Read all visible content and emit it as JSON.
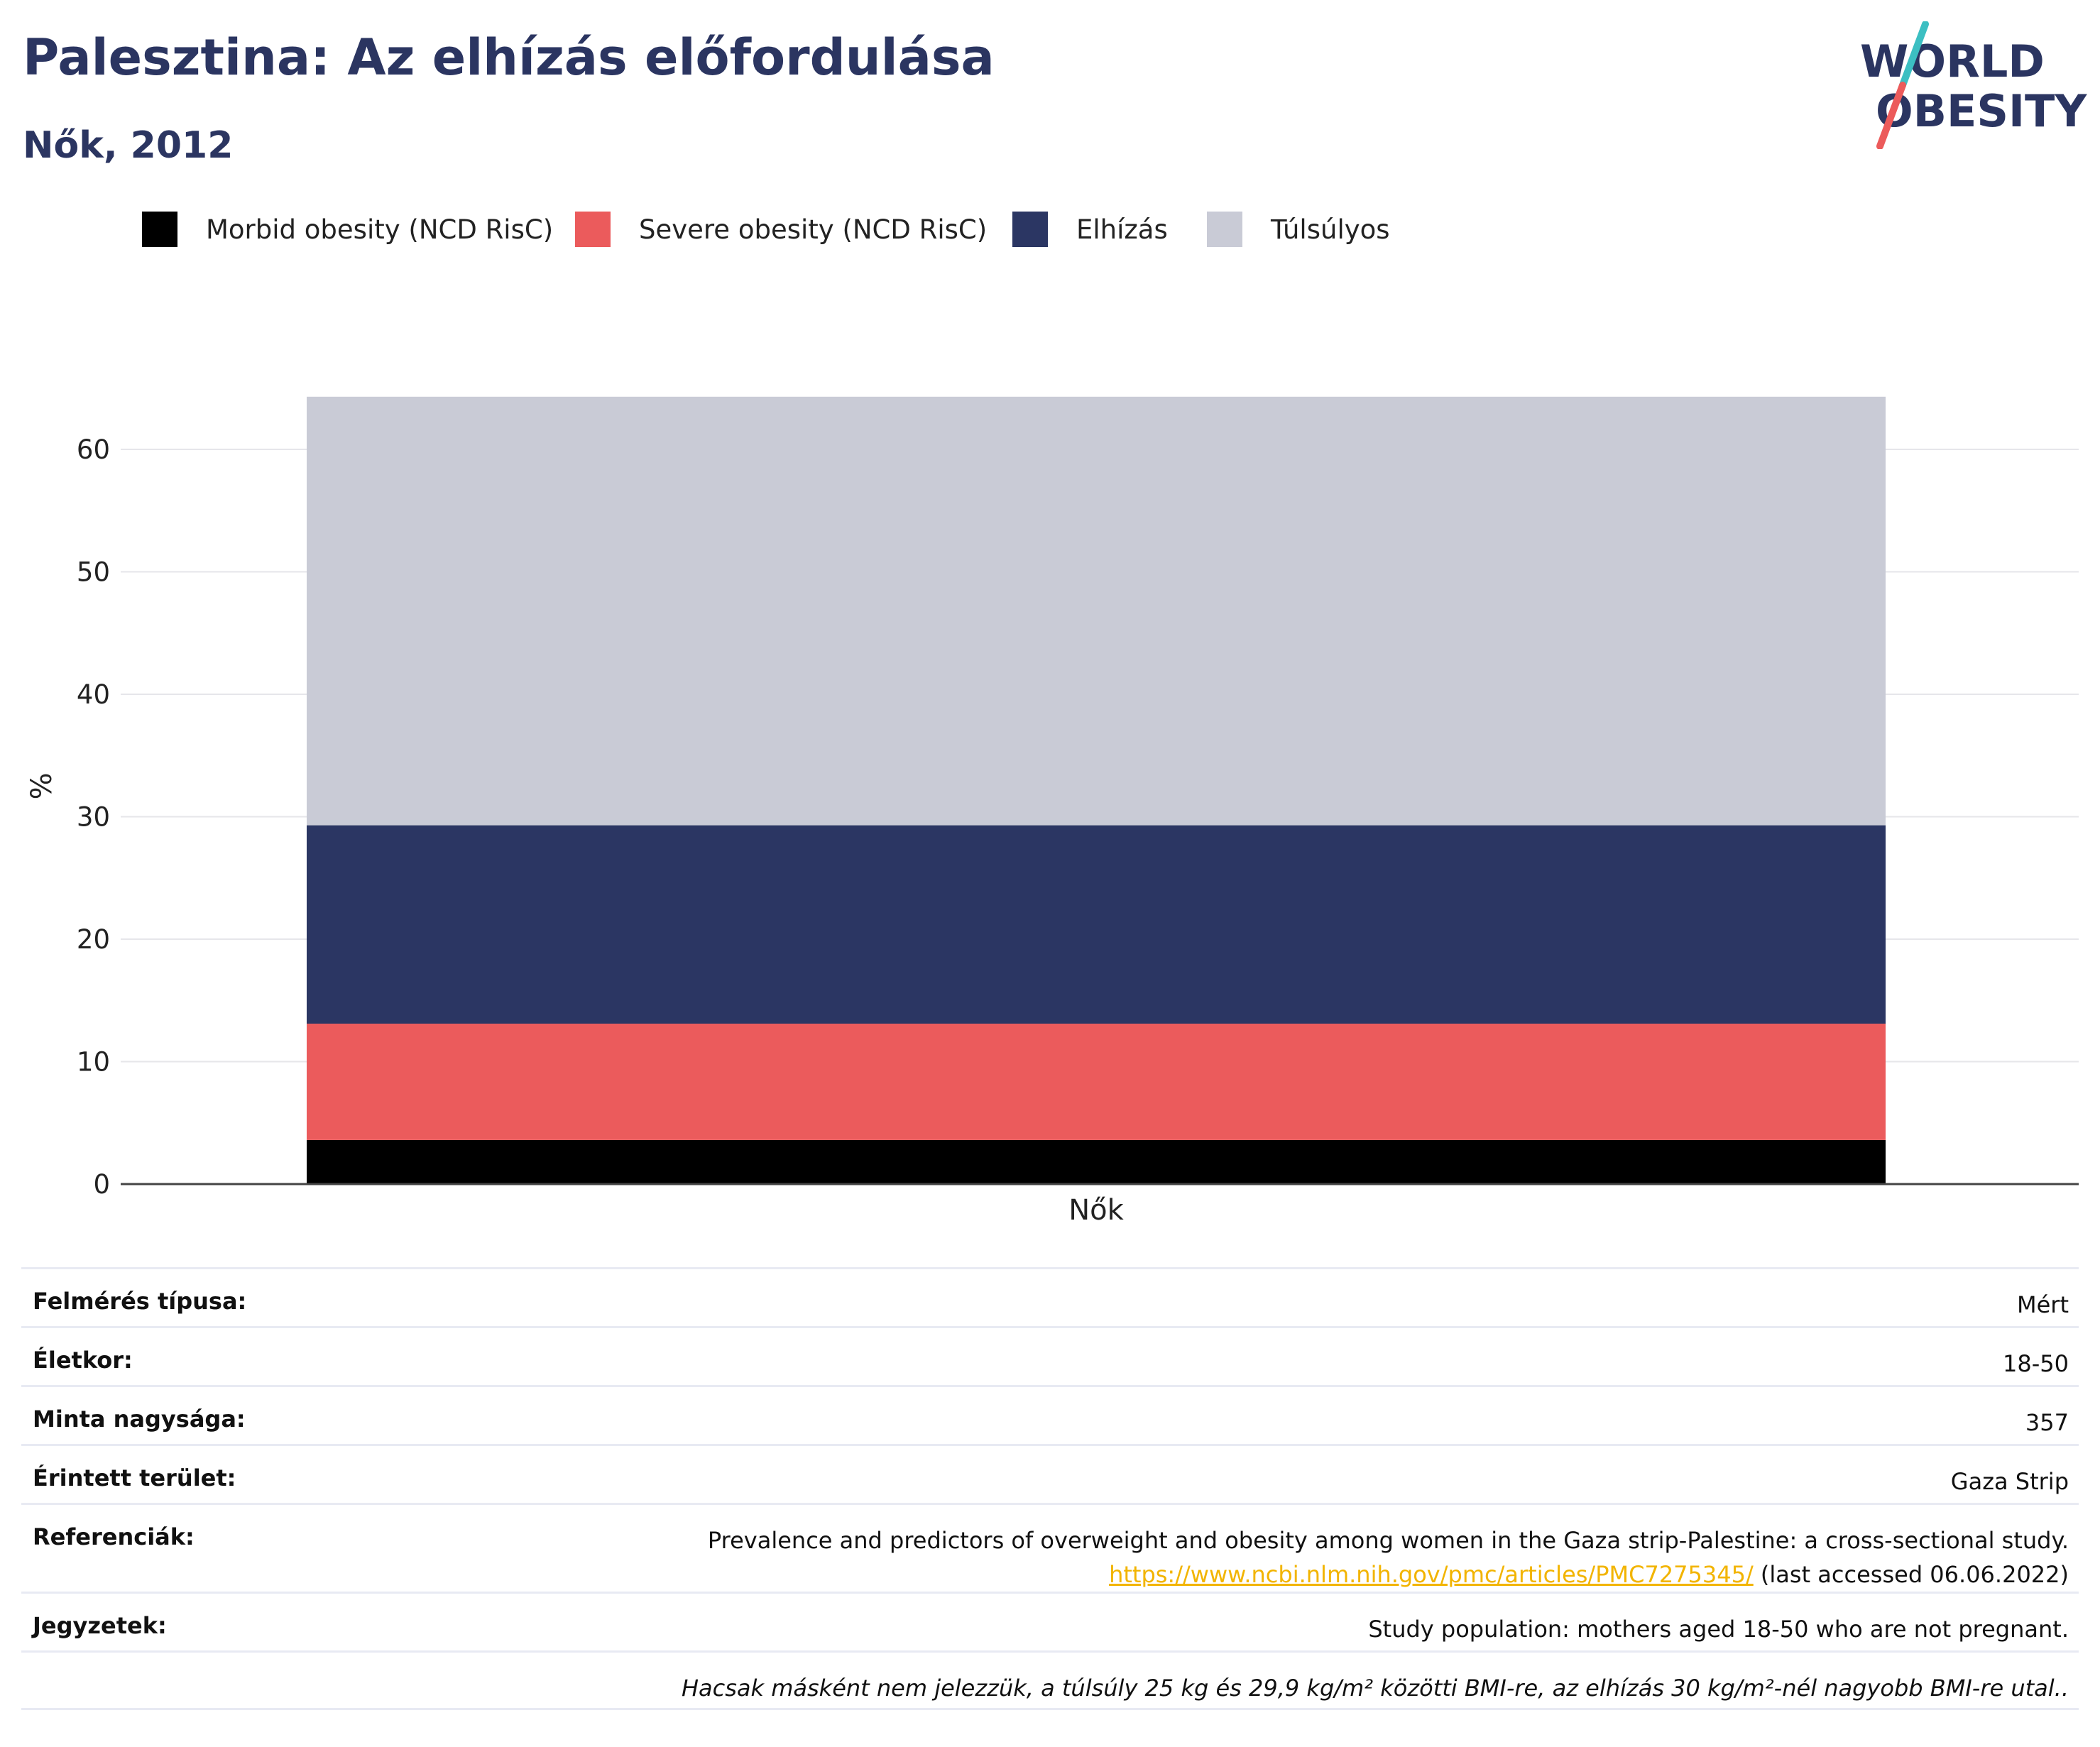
{
  "header": {
    "title": "Palesztina: Az elhízás előfordulása",
    "subtitle": "Nők, 2012"
  },
  "logo": {
    "line1": "WORLD",
    "line2": "OBESITY",
    "slash_colors": [
      "#3cbfc2",
      "#ec5b5b"
    ],
    "text_color": "#2b3561"
  },
  "legend": [
    {
      "label": "Morbid obesity (NCD RisC)",
      "color": "#000000"
    },
    {
      "label": "Severe obesity (NCD RisC)",
      "color": "#eb5b5c"
    },
    {
      "label": "Elhízás",
      "color": "#2b3663"
    },
    {
      "label": "Túlsúlyos",
      "color": "#c9cbd6"
    }
  ],
  "chart_data": {
    "type": "bar",
    "stacked": true,
    "categories": [
      "Nők"
    ],
    "series": [
      {
        "name": "Morbid obesity (NCD RisC)",
        "values": [
          3.6
        ],
        "color": "#000000"
      },
      {
        "name": "Severe obesity (NCD RisC)",
        "values": [
          9.5
        ],
        "color": "#eb5b5c"
      },
      {
        "name": "Elhízás",
        "values": [
          16.2
        ],
        "color": "#2b3663"
      },
      {
        "name": "Túlsúlyos",
        "values": [
          35.0
        ],
        "color": "#c9cbd6"
      }
    ],
    "ylabel": "%",
    "ylim": [
      0,
      65
    ],
    "yticks": [
      0,
      10,
      20,
      30,
      40,
      50,
      60
    ],
    "grid": true,
    "legend_position": "top-left"
  },
  "info": {
    "rows": [
      {
        "label": "Felmérés típusa:",
        "value": "Mért"
      },
      {
        "label": "Életkor:",
        "value": "18-50"
      },
      {
        "label": "Minta nagysága:",
        "value": "357"
      },
      {
        "label": "Érintett terület:",
        "value": "Gaza Strip"
      }
    ],
    "references": {
      "label": "Referenciák:",
      "text": "Prevalence and predictors of overweight and obesity among women in the Gaza strip-Palestine: a cross-sectional study.",
      "link": "https://www.ncbi.nlm.nih.gov/pmc/articles/PMC7275345/",
      "accessed": "(last accessed 06.06.2022)"
    },
    "notes": {
      "label": "Jegyzetek:",
      "value": "Study population: mothers aged 18-50 who are not pregnant."
    },
    "footnote": "Hacsak másként nem jelezzük, a túlsúly 25 kg és 29,9 kg/m² közötti BMI-re, az elhízás 30 kg/m²-nél nagyobb BMI-re utal.."
  }
}
